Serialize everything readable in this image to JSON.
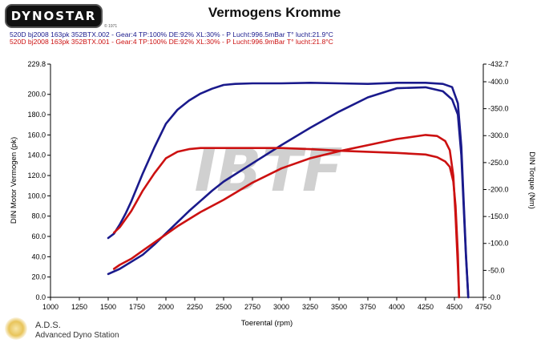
{
  "header": {
    "logo_text": "DYNOSTAR",
    "logo_sub": "© 1971",
    "title": "Vermogens Kromme",
    "runs": [
      "520D bj2008 163pk 352BTX.002 - Gear:4 TP:100% DE:92% XL:30%   - P Lucht:996.5mBar T° lucht:21.9°C",
      "520D bj2008 163pk 352BTX.001 - Gear:4 TP:100% DE:92% XL:30%   - P Lucht:996.9mBar T° lucht:21.8°C"
    ]
  },
  "footer": {
    "station_name": "A.D.S.",
    "station_full": "Advanced Dyno Station"
  },
  "watermark": "IBTF",
  "chart_data": {
    "type": "line",
    "title": "Vermogens Kromme",
    "xlabel": "Toerental (rpm)",
    "ylabel": "DIN Motor Vermogen (pk)",
    "y2label": "DIN Torque (Nm)",
    "xlim": [
      1000,
      4750
    ],
    "ylim": [
      0,
      229.8
    ],
    "y2lim": [
      0,
      432.7
    ],
    "x_ticks": [
      1000,
      1250,
      1500,
      1750,
      2000,
      2250,
      2500,
      2750,
      3000,
      3250,
      3500,
      3750,
      4000,
      4250,
      4500,
      4750
    ],
    "y_ticks": [
      0,
      20,
      40,
      60,
      80,
      100,
      120,
      140,
      160,
      180,
      200,
      229.8
    ],
    "y_tick_labels": [
      "0.0",
      "20.0",
      "40.0",
      "60.0",
      "80.0",
      "100.0",
      "120.0",
      "140.0",
      "160.0",
      "180.0",
      "200.0",
      "229.8"
    ],
    "y2_ticks": [
      0,
      50,
      100,
      150,
      200,
      250,
      300,
      350,
      400,
      432.7
    ],
    "y2_tick_labels": [
      "-0.0",
      "-50.0",
      "-100.0",
      "-150.0",
      "-200.0",
      "-250.0",
      "-300.0",
      "-350.0",
      "-400.0",
      "-432.7"
    ],
    "grid": false,
    "colors": {
      "run_002": "#1a1a8c",
      "run_001": "#cc1111"
    },
    "series": [
      {
        "axis": "right",
        "color": "#1a1a8c",
        "x": [
          1500,
          1550,
          1600,
          1650,
          1700,
          1800,
          1900,
          2000,
          2100,
          2200,
          2300,
          2400,
          2500,
          2600,
          2750,
          3000,
          3250,
          3500,
          3750,
          4000,
          4250,
          4400,
          4480,
          4530,
          4560,
          4580,
          4600,
          4620
        ],
        "values": [
          110,
          118,
          135,
          155,
          178,
          230,
          278,
          322,
          348,
          365,
          378,
          387,
          394,
          396,
          397,
          397,
          398,
          397,
          396,
          398,
          398,
          396,
          390,
          360,
          280,
          180,
          80,
          0
        ]
      },
      {
        "axis": "left",
        "color": "#1a1a8c",
        "x": [
          1500,
          1600,
          1700,
          1800,
          1900,
          2000,
          2100,
          2200,
          2300,
          2400,
          2500,
          2750,
          3000,
          3250,
          3500,
          3750,
          4000,
          4250,
          4400,
          4480,
          4530,
          4560,
          4580,
          4600,
          4620
        ],
        "values": [
          23,
          28,
          35,
          42,
          52,
          63,
          74,
          85,
          95,
          105,
          114,
          132,
          150,
          167,
          183,
          197,
          206,
          207,
          203,
          195,
          180,
          140,
          90,
          40,
          0
        ]
      },
      {
        "axis": "right",
        "color": "#cc1111",
        "x": [
          1550,
          1600,
          1650,
          1700,
          1800,
          1900,
          2000,
          2100,
          2200,
          2300,
          2400,
          2500,
          2750,
          3000,
          3250,
          3500,
          3750,
          4000,
          4250,
          4350,
          4420,
          4460,
          4490,
          4510,
          4530,
          4540
        ],
        "values": [
          120,
          130,
          145,
          160,
          198,
          230,
          258,
          270,
          275,
          277,
          277,
          277,
          277,
          277,
          275,
          272,
          270,
          268,
          265,
          260,
          252,
          242,
          215,
          170,
          80,
          0
        ]
      },
      {
        "axis": "left",
        "color": "#cc1111",
        "x": [
          1550,
          1600,
          1700,
          1800,
          1900,
          2000,
          2100,
          2200,
          2300,
          2400,
          2500,
          2750,
          3000,
          3250,
          3500,
          3750,
          4000,
          4250,
          4350,
          4420,
          4460,
          4490,
          4510,
          4530,
          4540
        ],
        "values": [
          28,
          32,
          38,
          46,
          54,
          62,
          70,
          77,
          84,
          90,
          96,
          113,
          127,
          137,
          144,
          150,
          156,
          160,
          159,
          154,
          145,
          120,
          80,
          30,
          0
        ]
      }
    ]
  }
}
